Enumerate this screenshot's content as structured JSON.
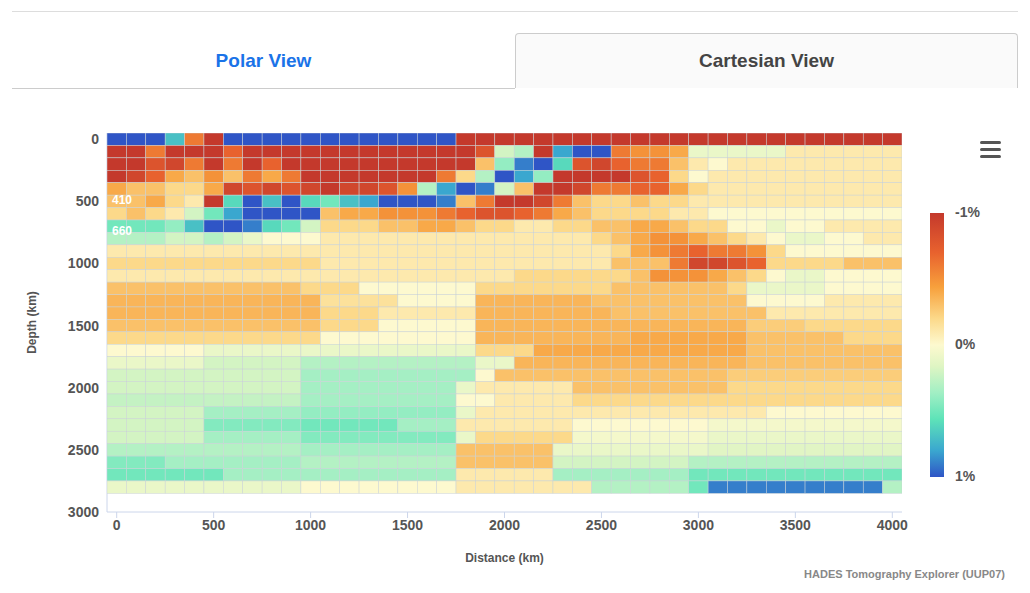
{
  "chart_data": {
    "type": "heatmap",
    "tabs": [
      "Polar View",
      "Cartesian View"
    ],
    "xlabel": "Distance (km)",
    "ylabel": "Depth (km)",
    "credit": "HADES Tomography Explorer (UUP07)",
    "grid": false,
    "xlim": [
      -50,
      4050
    ],
    "ylim": [
      -50,
      3000
    ],
    "xticks": [
      0,
      500,
      1000,
      1500,
      2000,
      2500,
      3000,
      3500,
      4000
    ],
    "yticks": [
      0,
      500,
      1000,
      1500,
      2000,
      2500,
      3000
    ],
    "colorbar": {
      "range": [
        -1,
        1
      ],
      "ticks": [
        {
          "value": -1,
          "label": "-1%"
        },
        {
          "value": 0,
          "label": "0%"
        },
        {
          "value": 1,
          "label": "1%"
        }
      ]
    },
    "reference_lines": [
      {
        "value": 410,
        "label": "410"
      },
      {
        "value": 660,
        "label": "660"
      }
    ],
    "x": [
      0,
      100,
      200,
      300,
      400,
      500,
      600,
      700,
      800,
      900,
      1000,
      1100,
      1200,
      1300,
      1400,
      1500,
      1600,
      1700,
      1800,
      1900,
      2000,
      2100,
      2200,
      2300,
      2400,
      2500,
      2600,
      2700,
      2800,
      2900,
      3000,
      3100,
      3200,
      3300,
      3400,
      3500,
      3600,
      3700,
      3800,
      3900,
      4000
    ],
    "y": [
      0,
      100,
      200,
      300,
      400,
      500,
      600,
      700,
      800,
      900,
      1000,
      1100,
      1200,
      1300,
      1400,
      1500,
      1600,
      1700,
      1800,
      1900,
      2000,
      2100,
      2200,
      2300,
      2400,
      2500,
      2600,
      2700,
      2800
    ],
    "z": [
      [
        1,
        1,
        1,
        0.7,
        -0.6,
        -1,
        1,
        1,
        1,
        1,
        1,
        1,
        1,
        1,
        1,
        1,
        1,
        1,
        -1,
        -1,
        -1,
        -1,
        -1,
        -1,
        -1,
        -1,
        -1,
        -1,
        -1,
        -1,
        -1,
        -1,
        -1,
        -1,
        -1,
        -1,
        -1,
        -1,
        -1,
        -1,
        -1
      ],
      [
        -1,
        -1,
        -0.6,
        -1,
        -1,
        -1,
        -0.7,
        -1,
        -1,
        -1,
        -1,
        -1,
        -1,
        -1,
        -1,
        -1,
        -1,
        -1,
        -1,
        -0.8,
        0.2,
        0.3,
        -1,
        0.8,
        1,
        1,
        -0.6,
        -0.5,
        -0.5,
        -0.4,
        0.1,
        0.1,
        0.1,
        0.1,
        0.1,
        -0.1,
        -0.1,
        -0.1,
        -0.1,
        -0.1,
        -0.1
      ],
      [
        -1,
        -1,
        -0.8,
        -0.9,
        -0.6,
        -1,
        -0.6,
        -1,
        -0.7,
        -1,
        -1,
        -1,
        -1,
        -1,
        -1,
        -1,
        -1,
        -1,
        -1,
        -0.3,
        0.4,
        0.9,
        1,
        0.6,
        -0.8,
        -0.9,
        -0.7,
        -0.6,
        -0.6,
        -0.3,
        -0.1,
        0,
        -0.1,
        -0.1,
        -0.1,
        -0.1,
        -0.1,
        -0.1,
        -0.1,
        -0.1,
        -0.1
      ],
      [
        -1,
        -0.9,
        -0.7,
        -0.4,
        -0.3,
        -0.5,
        -0.3,
        -0.6,
        -0.4,
        -0.6,
        -1,
        -1,
        -1,
        -1,
        -1,
        -1,
        -1,
        -0.6,
        -0.2,
        0.3,
        1,
        0.8,
        0.4,
        -1,
        -1,
        -1,
        -1,
        -0.8,
        -0.7,
        -0.2,
        0,
        -0.1,
        -0.1,
        -0.1,
        -0.1,
        -0.1,
        -0.1,
        -0.1,
        -0.1,
        -0.1,
        -0.1
      ],
      [
        -0.4,
        -0.3,
        -0.3,
        -0.2,
        -0.2,
        -0.4,
        -0.9,
        -0.8,
        -0.9,
        -0.8,
        -0.9,
        -1,
        -0.9,
        -0.9,
        -0.8,
        -0.5,
        0.3,
        0.8,
        1,
        0.9,
        0.2,
        -0.3,
        -1,
        -1,
        -0.9,
        -0.6,
        -0.6,
        -0.7,
        -0.7,
        -0.4,
        -0.2,
        -0.1,
        -0.1,
        -0.1,
        -0.1,
        -0.1,
        -0.1,
        -0.1,
        -0.1,
        -0.1,
        -0.1
      ],
      [
        -0.3,
        -0.3,
        -0.4,
        -0.2,
        -0.1,
        -1,
        0.6,
        1,
        0.7,
        1,
        0.6,
        0.5,
        0.7,
        0.8,
        1,
        1,
        1,
        0.9,
        -0.3,
        -0.6,
        -1,
        -1,
        -0.9,
        -0.6,
        -0.3,
        -0.2,
        -0.2,
        -0.3,
        -0.2,
        -0.2,
        -0.1,
        -0.1,
        -0.1,
        -0.1,
        -0.1,
        -0.1,
        -0.1,
        -0.1,
        -0.1,
        -0.1,
        -0.1
      ],
      [
        -0.2,
        -0.3,
        -0.2,
        -0.1,
        0.2,
        0.5,
        0.8,
        1,
        1,
        1,
        1,
        -0.3,
        -0.4,
        -0.4,
        -0.5,
        -0.5,
        -0.5,
        -0.6,
        -0.7,
        -0.8,
        -0.8,
        -0.7,
        -0.6,
        -0.4,
        -0.3,
        -0.2,
        -0.2,
        -0.2,
        -0.2,
        -0.1,
        -0.1,
        0,
        0,
        0,
        0,
        0,
        0,
        0,
        0,
        0,
        0
      ],
      [
        0.5,
        0.5,
        0.5,
        0.4,
        0.7,
        1,
        1,
        0.9,
        0.6,
        0.5,
        0.2,
        -0.2,
        -0.2,
        -0.2,
        -0.3,
        -0.3,
        -0.4,
        -0.4,
        -0.3,
        -0.2,
        -0.2,
        -0.1,
        -0.1,
        -0.2,
        -0.2,
        -0.3,
        -0.3,
        -0.4,
        -0.4,
        -0.3,
        -0.2,
        -0.2,
        0,
        0,
        0.1,
        0,
        0,
        -0.1,
        -0.1,
        -0.1,
        -0.1
      ],
      [
        0.3,
        0.3,
        0.3,
        0.2,
        0.2,
        0.3,
        0.2,
        0.1,
        0,
        0,
        0,
        -0.1,
        -0.1,
        -0.1,
        -0.1,
        -0.1,
        -0.1,
        -0.1,
        -0.1,
        -0.1,
        -0.1,
        -0.1,
        -0.1,
        -0.1,
        -0.1,
        -0.2,
        -0.3,
        -0.4,
        -0.5,
        -0.5,
        -0.4,
        -0.3,
        -0.2,
        -0.1,
        0,
        0.1,
        0.1,
        0,
        0,
        -0.1,
        -0.1
      ],
      [
        -0.1,
        -0.1,
        -0.1,
        -0.1,
        -0.1,
        -0.1,
        -0.1,
        -0.1,
        -0.1,
        -0.1,
        -0.1,
        -0.1,
        -0.1,
        -0.1,
        -0.1,
        -0.1,
        -0.1,
        -0.1,
        -0.1,
        -0.1,
        -0.1,
        -0.1,
        -0.1,
        -0.1,
        -0.1,
        -0.1,
        -0.2,
        -0.4,
        -0.5,
        -0.6,
        -0.7,
        -0.6,
        -0.6,
        -0.5,
        -0.2,
        0,
        0,
        0,
        0,
        0,
        0
      ],
      [
        -0.2,
        -0.2,
        -0.2,
        -0.2,
        -0.2,
        -0.2,
        -0.2,
        -0.2,
        -0.2,
        -0.2,
        -0.2,
        -0.1,
        -0.1,
        -0.1,
        -0.1,
        -0.1,
        -0.1,
        -0.1,
        -0.1,
        -0.1,
        -0.1,
        -0.1,
        -0.1,
        -0.1,
        -0.1,
        -0.1,
        -0.3,
        -0.3,
        -0.3,
        -0.6,
        -0.9,
        -0.9,
        -0.8,
        -0.7,
        -0.2,
        -0.2,
        -0.2,
        -0.2,
        -0.3,
        -0.3,
        -0.3
      ],
      [
        -0.1,
        -0.1,
        -0.1,
        -0.1,
        -0.1,
        -0.1,
        -0.1,
        -0.1,
        -0.1,
        -0.1,
        -0.1,
        -0.1,
        -0.1,
        -0.1,
        -0.1,
        -0.1,
        -0.1,
        -0.1,
        -0.1,
        -0.1,
        -0.1,
        -0.2,
        -0.2,
        -0.2,
        -0.2,
        -0.2,
        -0.2,
        -0.3,
        -0.5,
        -0.5,
        -0.5,
        -0.4,
        -0.3,
        -0.2,
        0,
        0.1,
        0.1,
        0,
        0,
        0,
        0
      ],
      [
        -0.3,
        -0.3,
        -0.3,
        -0.3,
        -0.3,
        -0.3,
        -0.3,
        -0.3,
        -0.3,
        -0.3,
        -0.2,
        -0.2,
        -0.2,
        0,
        0,
        0,
        0,
        0,
        0,
        -0.2,
        -0.2,
        -0.2,
        -0.2,
        -0.2,
        -0.2,
        -0.2,
        -0.3,
        -0.3,
        -0.3,
        -0.3,
        -0.3,
        -0.3,
        -0.2,
        0.1,
        0.1,
        0.1,
        0.1,
        0,
        0,
        0,
        0
      ],
      [
        -0.35,
        -0.35,
        -0.35,
        -0.35,
        -0.35,
        -0.35,
        -0.35,
        -0.35,
        -0.35,
        -0.35,
        -0.35,
        -0.15,
        -0.15,
        -0.15,
        -0.15,
        0,
        0,
        0,
        0,
        -0.35,
        -0.35,
        -0.35,
        -0.35,
        -0.35,
        -0.35,
        -0.3,
        -0.3,
        -0.3,
        -0.3,
        -0.3,
        -0.3,
        -0.3,
        -0.3,
        0,
        0,
        0,
        0,
        -0.1,
        -0.1,
        -0.1,
        -0.1
      ],
      [
        -0.35,
        -0.35,
        -0.35,
        -0.35,
        -0.35,
        -0.35,
        -0.35,
        -0.35,
        -0.35,
        -0.35,
        -0.35,
        -0.2,
        -0.2,
        -0.2,
        -0.1,
        -0.1,
        -0.1,
        -0.1,
        -0.1,
        -0.35,
        -0.35,
        -0.35,
        -0.35,
        -0.35,
        -0.35,
        -0.35,
        -0.3,
        -0.3,
        -0.3,
        -0.3,
        -0.3,
        -0.3,
        -0.3,
        -0.3,
        -0.1,
        -0.1,
        -0.1,
        -0.1,
        -0.1,
        -0.1,
        -0.1
      ],
      [
        -0.3,
        -0.3,
        -0.3,
        -0.3,
        -0.3,
        -0.3,
        -0.3,
        -0.3,
        -0.3,
        -0.3,
        -0.3,
        -0.2,
        -0.2,
        -0.2,
        0,
        0,
        0,
        0,
        0,
        -0.35,
        -0.35,
        -0.35,
        -0.35,
        -0.35,
        -0.35,
        -0.35,
        -0.35,
        -0.35,
        -0.35,
        -0.35,
        -0.35,
        -0.35,
        -0.35,
        -0.25,
        -0.25,
        -0.25,
        -0.2,
        -0.2,
        -0.2,
        -0.2,
        -0.2
      ],
      [
        -0.2,
        -0.2,
        -0.2,
        -0.2,
        -0.2,
        -0.2,
        -0.2,
        -0.2,
        -0.2,
        -0.2,
        -0.2,
        0,
        0,
        0,
        0,
        0,
        0,
        0,
        0,
        -0.35,
        -0.35,
        -0.35,
        -0.35,
        -0.35,
        -0.35,
        -0.35,
        -0.35,
        -0.4,
        -0.4,
        -0.4,
        -0.4,
        -0.4,
        -0.4,
        -0.3,
        -0.3,
        -0.3,
        -0.3,
        -0.3,
        -0.2,
        -0.2,
        -0.2
      ],
      [
        0,
        0,
        0,
        0,
        0,
        0.1,
        0.1,
        0.1,
        0.1,
        0.1,
        0.1,
        0.1,
        0.1,
        0.1,
        0.1,
        0.1,
        0.1,
        0.1,
        0.1,
        -0.2,
        -0.2,
        -0.2,
        -0.4,
        -0.4,
        -0.4,
        -0.4,
        -0.4,
        -0.4,
        -0.4,
        -0.4,
        -0.4,
        -0.4,
        -0.4,
        -0.3,
        -0.3,
        -0.3,
        -0.3,
        -0.3,
        -0.3,
        -0.3,
        -0.3
      ],
      [
        0.1,
        0.1,
        0.1,
        0.1,
        0.1,
        0.2,
        0.2,
        0.2,
        0.2,
        0.2,
        0.3,
        0.3,
        0.3,
        0.3,
        0.3,
        0.3,
        0.3,
        0.3,
        0.3,
        0.1,
        0.1,
        -0.35,
        -0.35,
        -0.35,
        -0.35,
        -0.35,
        -0.35,
        -0.35,
        -0.35,
        -0.35,
        -0.35,
        -0.35,
        -0.35,
        -0.3,
        -0.3,
        -0.3,
        -0.3,
        -0.3,
        -0.3,
        -0.3,
        -0.3
      ],
      [
        0.2,
        0.2,
        0.2,
        0.2,
        0.2,
        0.2,
        0.2,
        0.2,
        0.2,
        0.2,
        0.35,
        0.35,
        0.35,
        0.35,
        0.35,
        0.35,
        0.35,
        0.35,
        0.35,
        0,
        -0.3,
        -0.3,
        -0.3,
        -0.3,
        -0.3,
        -0.3,
        -0.3,
        -0.3,
        -0.3,
        -0.3,
        -0.3,
        -0.3,
        -0.25,
        -0.25,
        -0.25,
        -0.25,
        -0.25,
        -0.25,
        -0.25,
        -0.25,
        -0.25
      ],
      [
        0.2,
        0.2,
        0.2,
        0.2,
        0.2,
        0.2,
        0.2,
        0.2,
        0.2,
        0.2,
        0.35,
        0.35,
        0.35,
        0.35,
        0.35,
        0.35,
        0.35,
        0.35,
        0.1,
        -0.1,
        -0.1,
        -0.1,
        -0.1,
        -0.1,
        -0.3,
        -0.3,
        -0.3,
        -0.3,
        -0.3,
        -0.3,
        -0.3,
        -0.3,
        -0.2,
        -0.2,
        -0.2,
        -0.2,
        -0.2,
        -0.2,
        -0.2,
        -0.2,
        -0.2
      ],
      [
        0.25,
        0.25,
        0.25,
        0.25,
        0.25,
        0.25,
        0.25,
        0.25,
        0.25,
        0.25,
        0.35,
        0.35,
        0.35,
        0.35,
        0.35,
        0.35,
        0.35,
        0.35,
        0,
        0,
        -0.1,
        -0.1,
        -0.1,
        -0.1,
        -0.2,
        -0.2,
        -0.2,
        -0.2,
        -0.2,
        -0.2,
        -0.2,
        -0.2,
        -0.2,
        -0.2,
        -0.2,
        -0.2,
        -0.2,
        -0.2,
        -0.2,
        -0.2,
        -0.2
      ],
      [
        0.2,
        0.2,
        0.2,
        0.2,
        0.2,
        0.35,
        0.35,
        0.35,
        0.35,
        0.35,
        0.4,
        0.4,
        0.4,
        0.4,
        0.4,
        0.4,
        0.4,
        0.4,
        0.1,
        -0.1,
        -0.1,
        -0.1,
        -0.1,
        -0.1,
        -0.1,
        -0.1,
        -0.1,
        -0.1,
        -0.1,
        -0.1,
        -0.1,
        -0.1,
        -0.1,
        -0.1,
        0,
        0,
        0,
        0,
        0,
        0,
        0
      ],
      [
        0.2,
        0.2,
        0.2,
        0.2,
        0.2,
        0.45,
        0.45,
        0.45,
        0.45,
        0.45,
        0.5,
        0.5,
        0.5,
        0.5,
        0.5,
        0.35,
        0.35,
        0.35,
        -0.1,
        -0.1,
        -0.1,
        -0.1,
        -0.1,
        -0.1,
        0,
        0,
        0,
        0,
        0,
        0,
        0,
        0.05,
        0.05,
        0.05,
        0.05,
        0.05,
        0.05,
        0.05,
        0.05,
        0.05,
        0.05
      ],
      [
        0.2,
        0.2,
        0.2,
        0.2,
        0.2,
        0.35,
        0.35,
        0.35,
        0.35,
        0.35,
        0.45,
        0.45,
        0.45,
        0.45,
        0.45,
        0.45,
        0.45,
        0.45,
        0.1,
        -0.2,
        -0.2,
        -0.2,
        -0.2,
        -0.2,
        0.05,
        0.05,
        0.05,
        0.05,
        0.05,
        0.05,
        0.05,
        0.1,
        0.1,
        0.1,
        0.1,
        0.1,
        0.1,
        0.1,
        0.1,
        0.1,
        0.1
      ],
      [
        0.3,
        0.3,
        0.3,
        0.3,
        0.3,
        0.3,
        0.3,
        0.3,
        0.3,
        0.3,
        0.35,
        0.35,
        0.35,
        0.35,
        0.35,
        0.35,
        0.35,
        0.35,
        -0.3,
        -0.3,
        -0.3,
        -0.3,
        -0.3,
        0.1,
        0.1,
        0.1,
        0.1,
        0.1,
        0.1,
        0.1,
        0.1,
        0.15,
        0.15,
        0.15,
        0.15,
        0.15,
        0.15,
        0.15,
        0.15,
        0.15,
        0.15
      ],
      [
        0.45,
        0.45,
        0.45,
        0.35,
        0.35,
        0.35,
        0.35,
        0.35,
        0.35,
        0.35,
        0.3,
        0.3,
        0.3,
        0.3,
        0.3,
        0.3,
        0.3,
        0.3,
        -0.3,
        -0.3,
        -0.3,
        -0.3,
        -0.3,
        0.2,
        0.2,
        0.2,
        0.2,
        0.2,
        0.2,
        0.2,
        0.3,
        0.3,
        0.3,
        0.3,
        0.3,
        0.3,
        0.3,
        0.3,
        0.3,
        0.3,
        0.3
      ],
      [
        0.5,
        0.5,
        0.5,
        0.5,
        0.5,
        0.5,
        0.35,
        0.35,
        0.35,
        0.35,
        0.35,
        0.35,
        0.35,
        0.35,
        0.35,
        0.35,
        0.35,
        0.35,
        -0.1,
        -0.1,
        -0.1,
        -0.1,
        -0.1,
        0.35,
        0.35,
        0.35,
        0.35,
        0.35,
        0.35,
        0.35,
        0.5,
        0.5,
        0.5,
        0.5,
        0.5,
        0.5,
        0.5,
        0.5,
        0.5,
        0.5,
        0.5
      ],
      [
        0.1,
        0.1,
        0.1,
        0.1,
        0.1,
        0.1,
        0.1,
        0.1,
        0.1,
        0.1,
        0,
        0,
        0,
        0,
        0,
        0,
        0,
        0,
        -0.1,
        -0.1,
        -0.1,
        -0.1,
        -0.1,
        -0.1,
        -0.1,
        0.3,
        0.3,
        0.3,
        0.3,
        0.3,
        0.5,
        0.9,
        0.9,
        0.9,
        0.9,
        0.9,
        0.9,
        0.9,
        0.9,
        0.9,
        0.3
      ]
    ]
  }
}
